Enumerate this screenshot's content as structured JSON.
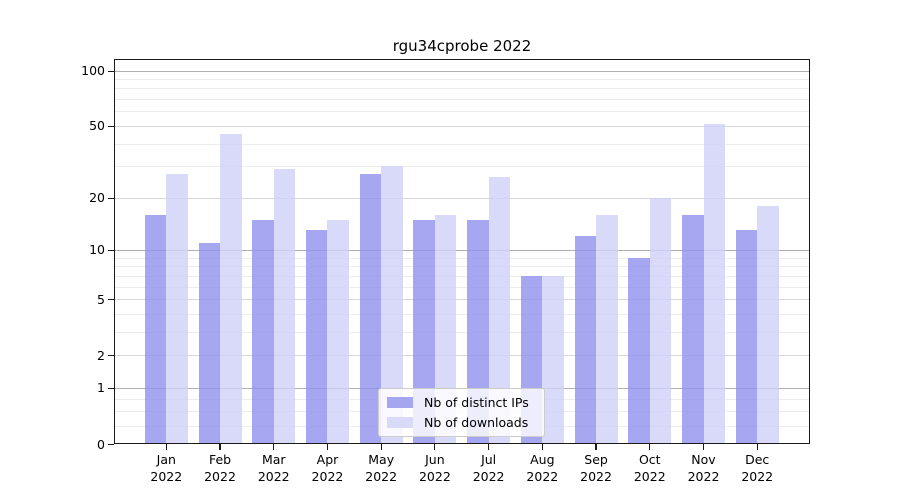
{
  "figure": {
    "title": "rgu34cprobe 2022"
  },
  "legend": {
    "items": [
      {
        "label": "Nb of distinct IPs",
        "color": "#a6a6f0",
        "fill": "rgba(144,144,237,0.8)"
      },
      {
        "label": "Nb of downloads",
        "color": "#d9d9f8",
        "fill": "rgba(208,208,247,0.8)"
      }
    ]
  },
  "axes": {
    "x_months": [
      "Jan",
      "Feb",
      "Mar",
      "Apr",
      "May",
      "Jun",
      "Jul",
      "Aug",
      "Sep",
      "Oct",
      "Nov",
      "Dec"
    ],
    "x_year": "2022",
    "y_tick_labels": [
      "100",
      "50",
      "20",
      "10",
      "5",
      "2",
      "1",
      "0"
    ],
    "y_tick_values": [
      100,
      50,
      20,
      10,
      5,
      2,
      1,
      0
    ]
  },
  "chart_data": {
    "type": "bar",
    "title": "rgu34cprobe 2022",
    "categories": [
      "Jan 2022",
      "Feb 2022",
      "Mar 2022",
      "Apr 2022",
      "May 2022",
      "Jun 2022",
      "Jul 2022",
      "Aug 2022",
      "Sep 2022",
      "Oct 2022",
      "Nov 2022",
      "Dec 2022"
    ],
    "series": [
      {
        "name": "Nb of distinct IPs",
        "color": "#a6a6f0",
        "values": [
          16,
          11,
          15,
          13,
          27,
          15,
          15,
          7,
          12,
          9,
          16,
          13
        ]
      },
      {
        "name": "Nb of downloads",
        "color": "#d9d9f8",
        "values": [
          27,
          45,
          29,
          15,
          30,
          16,
          26,
          7,
          16,
          20,
          51,
          18
        ]
      }
    ],
    "xlabel": "",
    "ylabel": "",
    "yscale": "log1p",
    "yticks": [
      0,
      1,
      2,
      5,
      10,
      20,
      50,
      100
    ],
    "ylim": [
      0,
      115
    ],
    "grid": true,
    "legend_position": "lower center"
  },
  "colors": {
    "grid_decade": "#b0b0b0",
    "grid_mid": "#d8d8d8",
    "grid_minor": "#ededed",
    "spine": "#1a1a1a"
  }
}
